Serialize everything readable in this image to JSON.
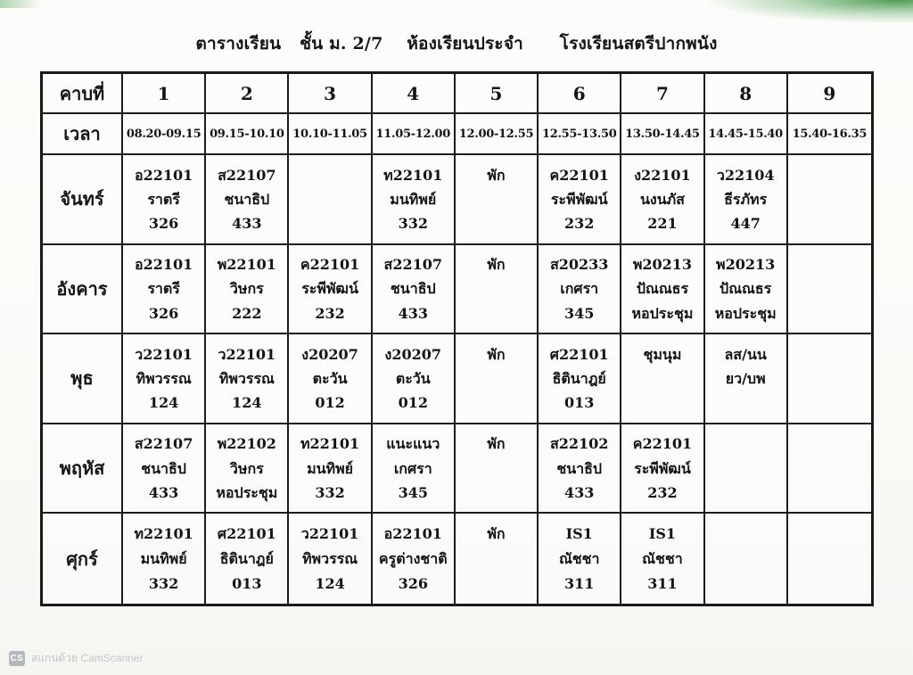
{
  "title": {
    "part1": "ตารางเรียน",
    "part2": "ชั้น ม. 2/7",
    "part3": "ห้องเรียนประจำ",
    "part4": "โรงเรียนสตรีปากพนัง"
  },
  "table": {
    "period_header": "คาบที่",
    "periods": [
      "1",
      "2",
      "3",
      "4",
      "5",
      "6",
      "7",
      "8",
      "9"
    ],
    "time_header": "เวลา",
    "times": [
      "08.20-09.15",
      "09.15-10.10",
      "10.10-11.05",
      "11.05-12.00",
      "12.00-12.55",
      "12.55-13.50",
      "13.50-14.45",
      "14.45-15.40",
      "15.40-16.35"
    ],
    "days": [
      {
        "label": "จันทร์",
        "cells": [
          [
            "อ22101",
            "ราตรี",
            "326"
          ],
          [
            "ส22107",
            "ชนาธิป",
            "433"
          ],
          [],
          [
            "ท22101",
            "มนทิพย์",
            "332"
          ],
          [
            "พัก"
          ],
          [
            "ค22101",
            "ระพีพัฒน์",
            "232"
          ],
          [
            "ง22101",
            "นงนภัส",
            "221"
          ],
          [
            "ว22104",
            "ธีรภัทร",
            "447"
          ],
          []
        ]
      },
      {
        "label": "อังคาร",
        "cells": [
          [
            "อ22101",
            "ราตรี",
            "326"
          ],
          [
            "พ22101",
            "วิษกร",
            "222"
          ],
          [
            "ค22101",
            "ระพีพัฒน์",
            "232"
          ],
          [
            "ส22107",
            "ชนาธิป",
            "433"
          ],
          [
            "พัก"
          ],
          [
            "ส20233",
            "เกศรา",
            "345"
          ],
          [
            "พ20213",
            "ปัณณธร",
            "หอประชุม"
          ],
          [
            "พ20213",
            "ปัณณธร",
            "หอประชุม"
          ],
          []
        ]
      },
      {
        "label": "พุธ",
        "cells": [
          [
            "ว22101",
            "ทิพวรรณ",
            "124"
          ],
          [
            "ว22101",
            "ทิพวรรณ",
            "124"
          ],
          [
            "ง20207",
            "ตะวัน",
            "012"
          ],
          [
            "ง20207",
            "ตะวัน",
            "012"
          ],
          [
            "พัก"
          ],
          [
            "ศ22101",
            "ธิตินาฎย์",
            "013"
          ],
          [
            "ชุมนุม"
          ],
          [
            "ลส/นน",
            "ยว/บพ"
          ],
          []
        ]
      },
      {
        "label": "พฤหัส",
        "cells": [
          [
            "ส22107",
            "ชนาธิป",
            "433"
          ],
          [
            "พ22102",
            "วิษกร",
            "หอประชุม"
          ],
          [
            "ท22101",
            "มนทิพย์",
            "332"
          ],
          [
            "แนะแนว",
            "เกศรา",
            "345"
          ],
          [
            "พัก"
          ],
          [
            "ส22102",
            "ชนาธิป",
            "433"
          ],
          [
            "ค22101",
            "ระพีพัฒน์",
            "232"
          ],
          [],
          []
        ]
      },
      {
        "label": "ศุกร์",
        "cells": [
          [
            "ท22101",
            "มนทิพย์",
            "332"
          ],
          [
            "ศ22101",
            "ธิตินาฎย์",
            "013"
          ],
          [
            "ว22101",
            "ทิพวรรณ",
            "124"
          ],
          [
            "อ22101",
            "ครูต่างชาติ",
            "326"
          ],
          [
            "พัก"
          ],
          [
            "IS1",
            "ณัชชา",
            "311"
          ],
          [
            "IS1",
            "ณัชชา",
            "311"
          ],
          [],
          []
        ]
      }
    ]
  },
  "footer": {
    "badge": "CS",
    "text": "สแกนด้วย CamScanner"
  },
  "colors": {
    "ink": "#141414",
    "table_border": "#1c1c1c",
    "scan_corner_green": "#409246",
    "watermark_gray": "#c2c6c9"
  }
}
